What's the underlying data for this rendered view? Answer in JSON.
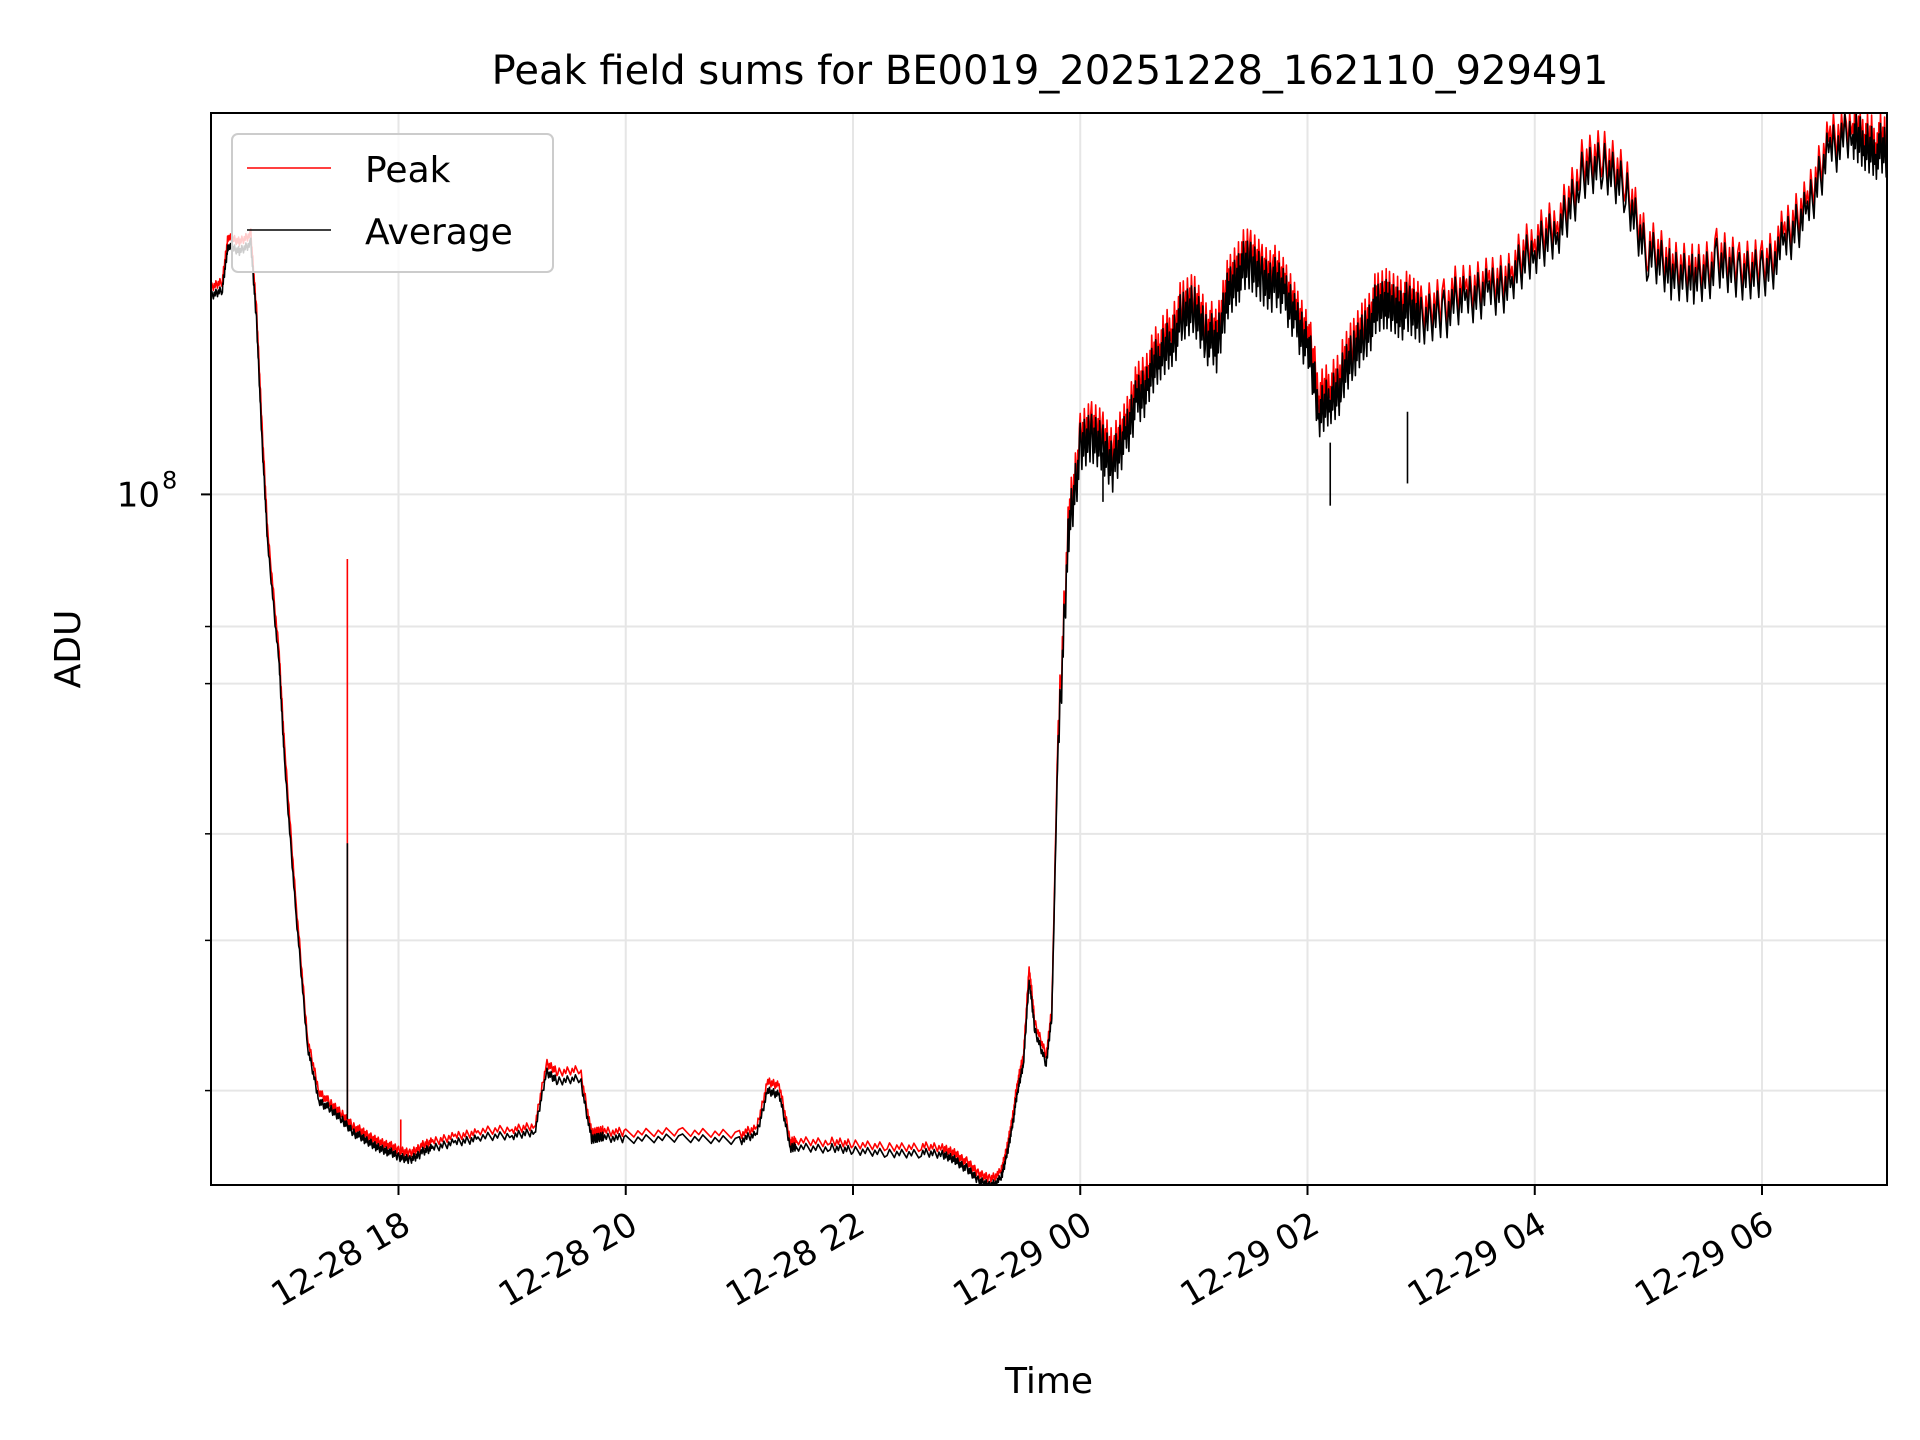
{
  "chart_data": {
    "type": "line",
    "title": "Peak field sums for BE0019_20251228_162110_929491",
    "xlabel": "Time",
    "ylabel": "ADU",
    "yscale": "log",
    "ylim": [
      15500000,
      280000000
    ],
    "xlim_hours": [
      16.35,
      31.1
    ],
    "x_unit": "hours since 2025-12-28 00:00",
    "y_major_tick": {
      "value": 100000000,
      "label_base": "10",
      "label_exp": "8"
    },
    "y_minor_ticks": [
      20000000,
      30000000,
      40000000,
      60000000,
      70000000
    ],
    "x_ticks": [
      {
        "value": 18,
        "label": "12-28 18"
      },
      {
        "value": 20,
        "label": "12-28 20"
      },
      {
        "value": 22,
        "label": "12-28 22"
      },
      {
        "value": 24,
        "label": "12-29 00"
      },
      {
        "value": 26,
        "label": "12-29 02"
      },
      {
        "value": 28,
        "label": "12-29 04"
      },
      {
        "value": 30,
        "label": "12-29 06"
      }
    ],
    "grid": true,
    "legend_position": "top-left",
    "colors": {
      "peak": "#ff0000",
      "average": "#000000",
      "grid": "#e6e6e6"
    },
    "series": [
      {
        "name": "Peak",
        "color": "#ff0000",
        "x": [
          16.35,
          16.45,
          16.5,
          16.6,
          16.7,
          16.75,
          16.8,
          16.85,
          16.95,
          17.0,
          17.1,
          17.2,
          17.3,
          17.4,
          17.5,
          17.6,
          17.7,
          17.8,
          17.9,
          18.0,
          18.1,
          18.2,
          18.3,
          18.5,
          18.7,
          19.0,
          19.2,
          19.3,
          19.4,
          19.6,
          19.7,
          19.75,
          19.8,
          20.0,
          20.5,
          21.0,
          21.15,
          21.25,
          21.35,
          21.45,
          21.5,
          21.8,
          22.0,
          22.3,
          22.6,
          22.8,
          22.9,
          23.0,
          23.1,
          23.2,
          23.3,
          23.35,
          23.4,
          23.45,
          23.5,
          23.55,
          23.6,
          23.7,
          23.75,
          23.8,
          23.9,
          24.0,
          24.1,
          24.2,
          24.3,
          24.4,
          24.5,
          24.6,
          24.7,
          24.8,
          24.9,
          25.0,
          25.1,
          25.2,
          25.3,
          25.4,
          25.5,
          25.6,
          25.7,
          25.8,
          25.9,
          26.0,
          26.1,
          26.2,
          26.3,
          26.4,
          26.5,
          26.6,
          26.7,
          26.8,
          26.9,
          27.0,
          27.2,
          27.4,
          27.6,
          27.8,
          28.0,
          28.2,
          28.4,
          28.6,
          28.8,
          29.0,
          29.2,
          29.4,
          29.6,
          29.8,
          30.0,
          30.2,
          30.4,
          30.6,
          30.8,
          30.9,
          31.0,
          31.1
        ],
        "y": [
          175000000,
          178000000,
          200000000,
          198000000,
          202000000,
          165000000,
          120000000,
          90000000,
          65000000,
          50000000,
          33000000,
          23000000,
          20000000,
          19300000,
          18800000,
          18200000,
          17800000,
          17500000,
          17300000,
          17000000,
          16900000,
          17200000,
          17400000,
          17700000,
          17900000,
          18000000,
          18200000,
          21500000,
          21000000,
          21200000,
          17800000,
          17900000,
          18000000,
          17800000,
          17900000,
          17800000,
          18000000,
          20500000,
          20300000,
          17400000,
          17500000,
          17400000,
          17300000,
          17200000,
          17200000,
          17100000,
          16900000,
          16500000,
          16000000,
          15800000,
          16000000,
          17000000,
          18500000,
          20500000,
          22000000,
          28000000,
          24000000,
          22000000,
          25000000,
          50000000,
          95000000,
          115000000,
          120000000,
          118000000,
          112000000,
          120000000,
          135000000,
          140000000,
          150000000,
          158000000,
          165000000,
          170000000,
          160000000,
          152000000,
          178000000,
          188000000,
          190000000,
          185000000,
          182000000,
          175000000,
          165000000,
          155000000,
          130000000,
          135000000,
          140000000,
          150000000,
          160000000,
          168000000,
          172000000,
          170000000,
          168000000,
          165000000,
          170000000,
          172000000,
          178000000,
          182000000,
          198000000,
          210000000,
          240000000,
          250000000,
          235000000,
          195000000,
          185000000,
          185000000,
          190000000,
          185000000,
          188000000,
          200000000,
          220000000,
          265000000,
          270000000,
          265000000,
          262000000,
          255000000
        ]
      },
      {
        "name": "Average",
        "color": "#000000",
        "x": [
          16.35,
          16.45,
          16.5,
          16.6,
          16.7,
          16.75,
          16.8,
          16.85,
          16.95,
          17.0,
          17.1,
          17.2,
          17.3,
          17.4,
          17.5,
          17.6,
          17.7,
          17.8,
          17.9,
          18.0,
          18.1,
          18.2,
          18.3,
          18.5,
          18.7,
          19.0,
          19.2,
          19.3,
          19.4,
          19.6,
          19.7,
          19.75,
          19.8,
          20.0,
          20.5,
          21.0,
          21.15,
          21.25,
          21.35,
          21.45,
          21.5,
          21.8,
          22.0,
          22.3,
          22.6,
          22.8,
          22.9,
          23.0,
          23.1,
          23.2,
          23.3,
          23.35,
          23.4,
          23.45,
          23.5,
          23.55,
          23.6,
          23.7,
          23.75,
          23.8,
          23.9,
          24.0,
          24.1,
          24.2,
          24.3,
          24.4,
          24.5,
          24.6,
          24.7,
          24.8,
          24.9,
          25.0,
          25.1,
          25.2,
          25.3,
          25.4,
          25.5,
          25.6,
          25.7,
          25.8,
          25.9,
          26.0,
          26.1,
          26.2,
          26.3,
          26.4,
          26.5,
          26.6,
          26.7,
          26.8,
          26.9,
          27.0,
          27.2,
          27.4,
          27.6,
          27.8,
          28.0,
          28.2,
          28.4,
          28.6,
          28.8,
          29.0,
          29.2,
          29.4,
          29.6,
          29.8,
          30.0,
          30.2,
          30.4,
          30.6,
          30.8,
          30.9,
          31.0,
          31.1
        ],
        "y": [
          171000000,
          174000000,
          195000000,
          193000000,
          197000000,
          160000000,
          115000000,
          87000000,
          63000000,
          48000000,
          32000000,
          22500000,
          19500000,
          19000000,
          18500000,
          17900000,
          17500000,
          17200000,
          17000000,
          16700000,
          16600000,
          16900000,
          17100000,
          17400000,
          17600000,
          17700000,
          17900000,
          21000000,
          20500000,
          20700000,
          17500000,
          17600000,
          17700000,
          17500000,
          17600000,
          17500000,
          17700000,
          20000000,
          19800000,
          17100000,
          17200000,
          17100000,
          17000000,
          16900000,
          16900000,
          16800000,
          16600000,
          16200000,
          15700000,
          15500000,
          15700000,
          16700000,
          18100000,
          20000000,
          21500000,
          27000000,
          23500000,
          21500000,
          24500000,
          48000000,
          92000000,
          112000000,
          116000000,
          114000000,
          108000000,
          116000000,
          130000000,
          135000000,
          145000000,
          152000000,
          160000000,
          165000000,
          155000000,
          147000000,
          172000000,
          182000000,
          184000000,
          179000000,
          176000000,
          170000000,
          160000000,
          150000000,
          124000000,
          130000000,
          135000000,
          145000000,
          155000000,
          163000000,
          167000000,
          165000000,
          163000000,
          160000000,
          165000000,
          167000000,
          173000000,
          177000000,
          192000000,
          204000000,
          232000000,
          242000000,
          228000000,
          190000000,
          180000000,
          180000000,
          185000000,
          180000000,
          183000000,
          194000000,
          214000000,
          257000000,
          262000000,
          257000000,
          254000000,
          248000000
        ]
      }
    ],
    "spikes": [
      {
        "series": "Peak",
        "x": 17.55,
        "base": 18800000,
        "top": 84000000
      },
      {
        "series": "Average",
        "x": 17.55,
        "base": 18500000,
        "top": 39000000
      },
      {
        "series": "Peak",
        "x": 18.02,
        "base": 17000000,
        "top": 18500000
      },
      {
        "series": "Average",
        "x": 26.2,
        "base": 115000000,
        "top": 97000000
      },
      {
        "series": "Average",
        "x": 26.88,
        "base": 125000000,
        "top": 103000000
      },
      {
        "series": "Average",
        "x": 24.2,
        "base": 112000000,
        "top": 98000000
      }
    ]
  }
}
